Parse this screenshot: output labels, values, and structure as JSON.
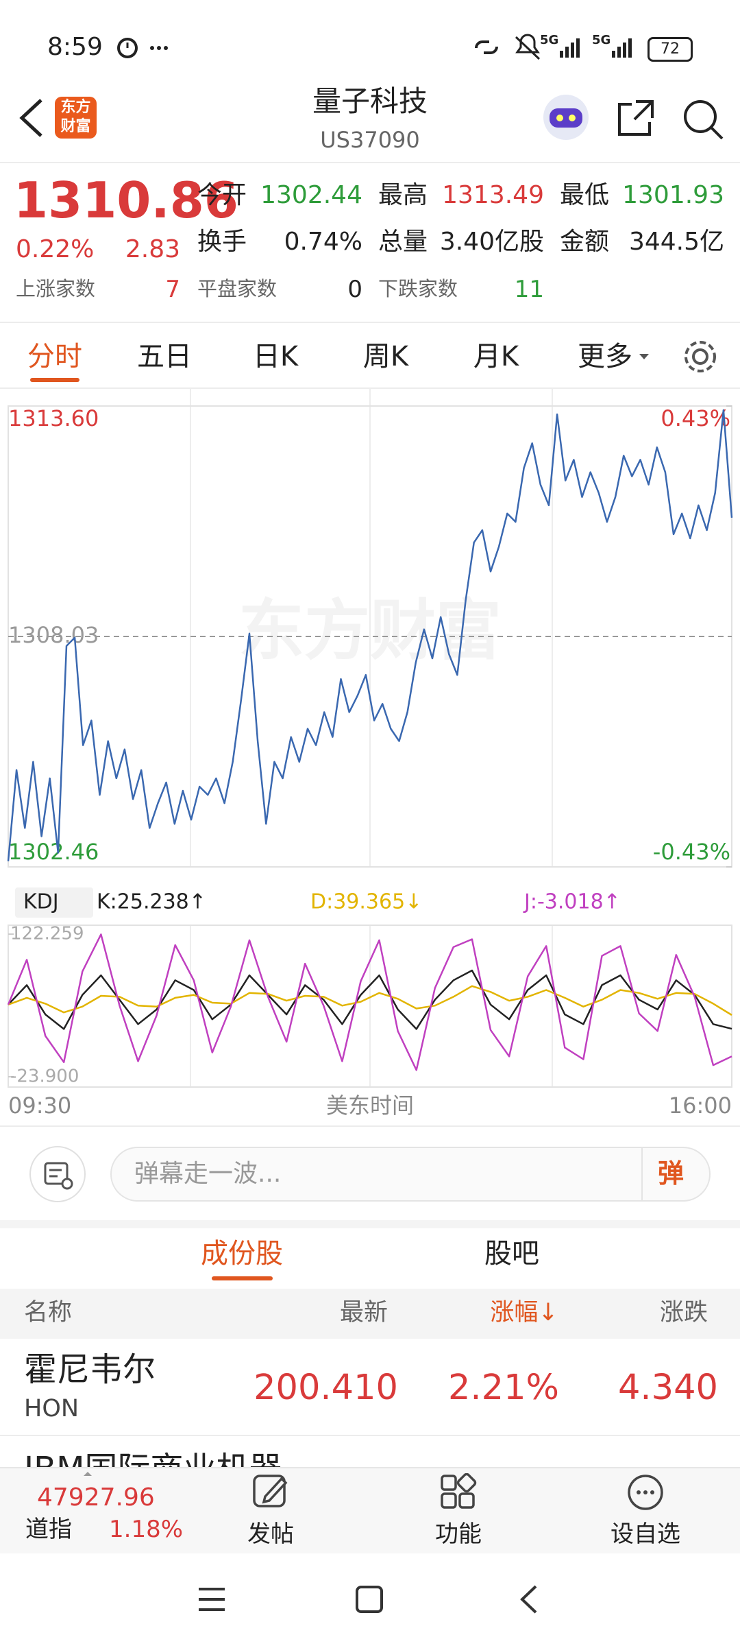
{
  "status": {
    "time": "8:59",
    "network": [
      "5G",
      "5G"
    ],
    "battery": "72"
  },
  "header": {
    "title": "量子科技",
    "code": "US37090",
    "logo": "东方财富"
  },
  "quote": {
    "price": "1310.86",
    "change_pct": "0.22%",
    "change": "2.83",
    "fields": [
      {
        "label": "今开",
        "value": "1302.44"
      },
      {
        "label": "最高",
        "value": "1313.49"
      },
      {
        "label": "最低",
        "value": "1301.93"
      },
      {
        "label": "换手",
        "value": "0.74%"
      },
      {
        "label": "总量",
        "value": "3.40亿股"
      },
      {
        "label": "金额",
        "value": "344.5亿"
      }
    ],
    "counts": [
      {
        "label": "上涨家数",
        "value": "7"
      },
      {
        "label": "平盘家数",
        "value": "0"
      },
      {
        "label": "下跌家数",
        "value": "11"
      }
    ]
  },
  "tabs": [
    "分时",
    "五日",
    "日K",
    "周K",
    "月K",
    "更多"
  ],
  "chart_data": [
    {
      "type": "line",
      "color": "#3a68b0",
      "watermark": "东方财富",
      "values": [
        1302.6,
        1304.8,
        1303.4,
        1305.0,
        1303.2,
        1304.6,
        1302.8,
        1307.8,
        1308.0,
        1305.4,
        1306.0,
        1304.2,
        1305.5,
        1304.6,
        1305.3,
        1304.1,
        1304.8,
        1303.4,
        1304.0,
        1304.5,
        1303.5,
        1304.3,
        1303.6,
        1304.4,
        1304.2,
        1304.6,
        1304.0,
        1305.0,
        1306.5,
        1308.1,
        1305.5,
        1303.5,
        1305.0,
        1304.6,
        1305.6,
        1305.0,
        1305.8,
        1305.4,
        1306.2,
        1305.6,
        1307.0,
        1306.2,
        1306.6,
        1307.1,
        1306.0,
        1306.4,
        1305.8,
        1305.5,
        1306.2,
        1307.4,
        1308.2,
        1307.5,
        1308.5,
        1307.6,
        1307.1,
        1308.9,
        1310.3,
        1310.6,
        1309.6,
        1310.2,
        1311.0,
        1310.8,
        1312.1,
        1312.7,
        1311.7,
        1311.2,
        1313.4,
        1311.8,
        1312.3,
        1311.4,
        1312.0,
        1311.5,
        1310.8,
        1311.4,
        1312.4,
        1311.9,
        1312.3,
        1311.7,
        1312.6,
        1312.0,
        1310.5,
        1311.0,
        1310.4,
        1311.2,
        1310.6,
        1311.5,
        1313.5,
        1310.9
      ],
      "ylim": [
        1302.46,
        1313.6
      ],
      "yticks": [
        {
          "value": 1313.6,
          "label": "1313.60"
        },
        {
          "value": 1308.03,
          "label": "1308.03"
        },
        {
          "value": 1302.46,
          "label": "1302.46"
        }
      ],
      "y2lim": [
        -0.43,
        0.43
      ],
      "y2ticks": [
        {
          "value": 0.43,
          "label": "0.43%"
        },
        {
          "value": -0.43,
          "label": "-0.43%"
        }
      ],
      "x_labels": [
        "09:30",
        "美东时间",
        "16:00"
      ]
    },
    {
      "type": "line",
      "indicator": "KDJ",
      "ylim": [
        -23.9,
        122.259
      ],
      "yticks": [
        {
          "value": 122.259,
          "label": "122.259"
        },
        {
          "value": -23.9,
          "label": "-23.900"
        }
      ],
      "series": [
        {
          "name": "K:25.238↑",
          "color": "#222222",
          "values": [
            50,
            70,
            40,
            25,
            60,
            80,
            55,
            30,
            45,
            75,
            65,
            35,
            50,
            80,
            60,
            40,
            70,
            55,
            30,
            60,
            80,
            45,
            25,
            55,
            75,
            85,
            50,
            35,
            65,
            80,
            40,
            30,
            70,
            80,
            55,
            45,
            75,
            60,
            30,
            25.238
          ]
        },
        {
          "name": "D:39.365↓",
          "color": "#e2b400",
          "values": [
            50,
            57,
            51,
            42,
            48,
            59,
            58,
            49,
            48,
            57,
            60,
            52,
            51,
            62,
            61,
            54,
            59,
            58,
            49,
            53,
            62,
            56,
            46,
            49,
            58,
            69,
            63,
            54,
            58,
            65,
            57,
            48,
            55,
            65,
            62,
            56,
            62,
            61,
            51,
            39.365
          ]
        },
        {
          "name": "J:-3.018↑",
          "color": "#c040c0",
          "values": [
            50,
            96,
            18,
            -9,
            84,
            122,
            49,
            -8,
            39,
            111,
            75,
            1,
            48,
            116,
            58,
            12,
            92,
            49,
            -8,
            74,
            116,
            23,
            -17,
            67,
            109,
            117,
            24,
            -3,
            79,
            110,
            6,
            -6,
            100,
            110,
            41,
            23,
            101,
            58,
            -12,
            -3.018
          ]
        }
      ]
    }
  ],
  "comment": {
    "placeholder": "弹幕走一波...",
    "button": "弹"
  },
  "sub_tabs": [
    "成份股",
    "股吧"
  ],
  "table": {
    "header": [
      "名称",
      "最新",
      "涨幅↓",
      "涨跌"
    ],
    "rows": [
      [
        "霍尼韦尔",
        "HON",
        "200.410",
        "2.21%",
        "4.340"
      ],
      [
        "IBM国际商业机器"
      ]
    ]
  },
  "footer": {
    "index_value": "47927.96",
    "index_name": "道指",
    "index_pct": "1.18%",
    "buttons": [
      "发帖",
      "功能",
      "设自选"
    ]
  }
}
